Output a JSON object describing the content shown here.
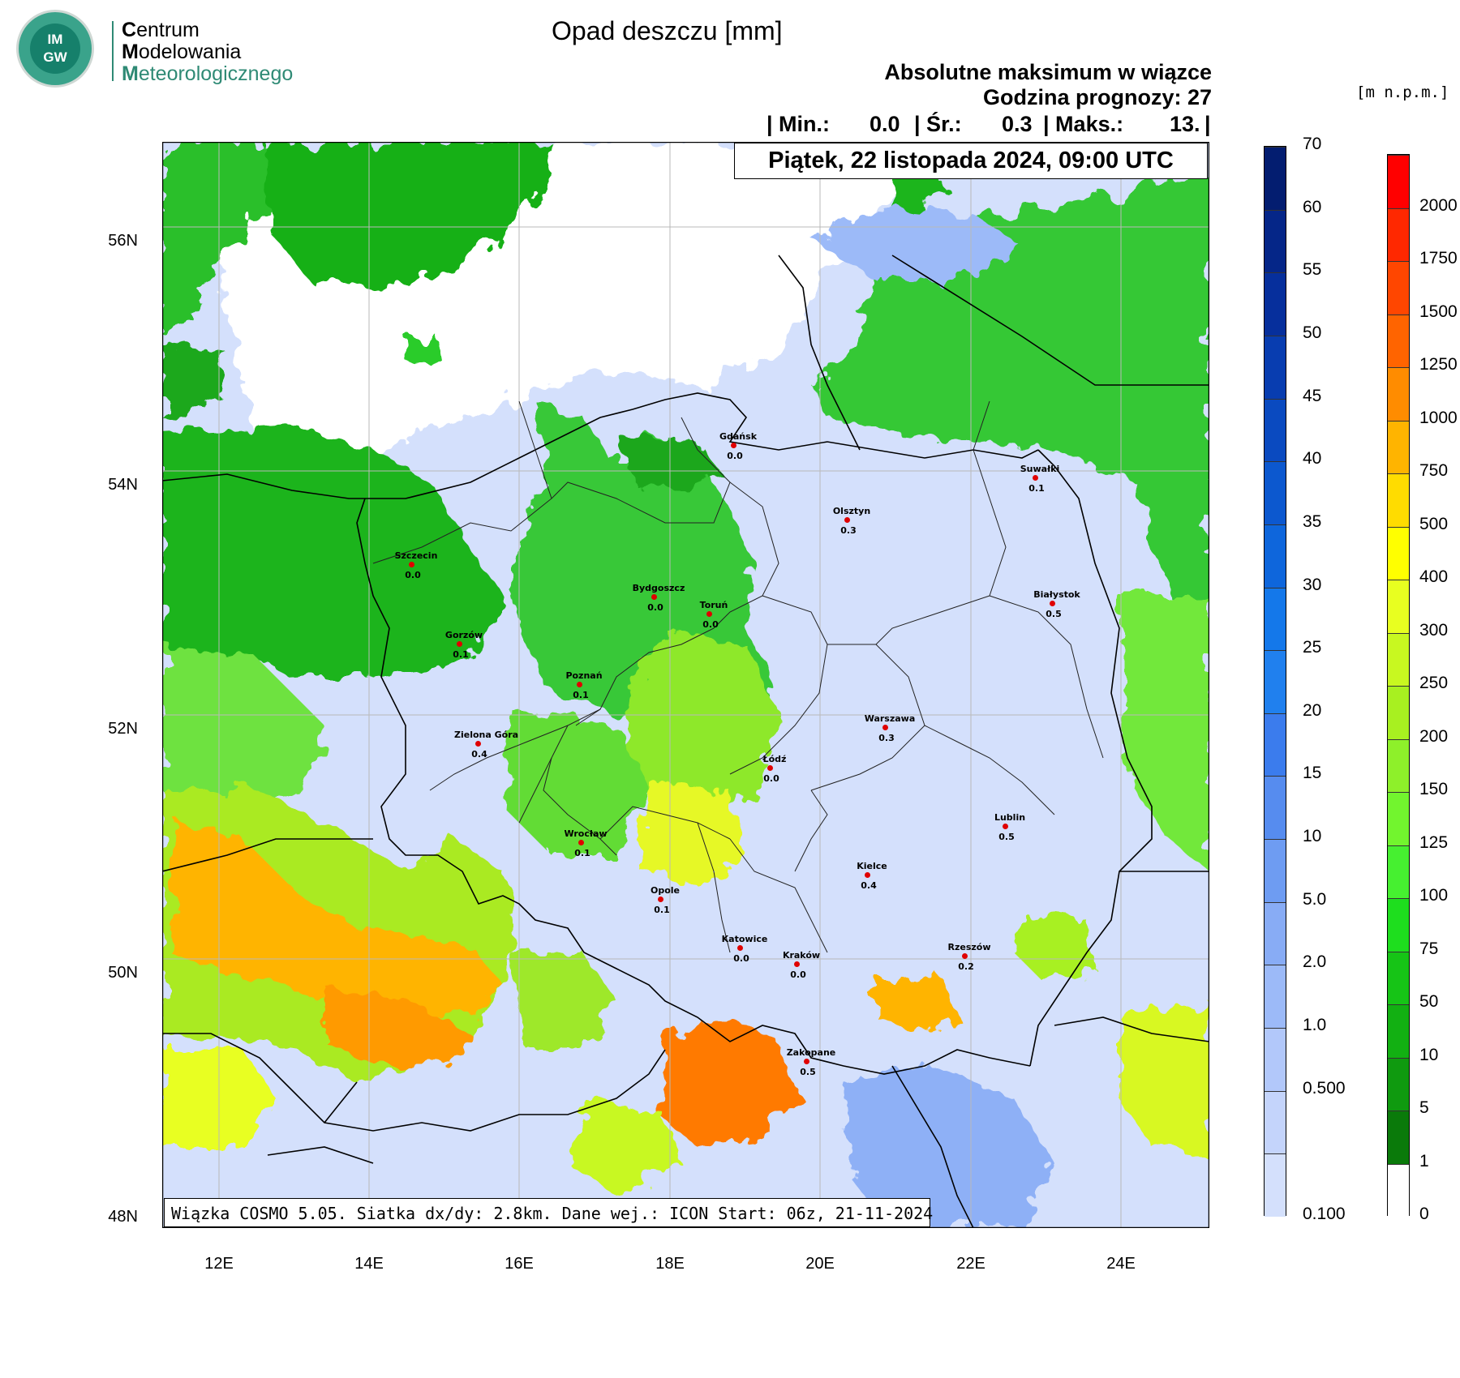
{
  "logo": {
    "badge": "IM\nGW",
    "line1_initial": "C",
    "line1_rest": "entrum",
    "line2_initial": "M",
    "line2_rest": "odelowania",
    "line3_initial": "M",
    "line3_rest": "eteorologicznego",
    "brand_color": "#2f8a75"
  },
  "title": "Opad deszczu [mm]",
  "subtitle1": "Absolutne maksimum w wiązce",
  "subtitle2": "Godzina prognozy: 27",
  "stats": {
    "min_label": "| Min.:",
    "min_value": "0.0",
    "avg_label": "| Śr.:",
    "avg_value": "0.3",
    "max_label": "| Maks.:",
    "max_value": "13.",
    "end": "|"
  },
  "date_label": "Piątek, 22 listopada 2024, 09:00 UTC",
  "run_label": "Wiązka COSMO 5.05. Siatka dx/dy: 2.8km. Dane wej.: ICON Start: 06z, 21-11-2024",
  "lat_labels": [
    "56N",
    "54N",
    "52N",
    "50N",
    "48N"
  ],
  "lon_labels": [
    "12E",
    "14E",
    "16E",
    "18E",
    "20E",
    "22E",
    "24E"
  ],
  "cities": [
    {
      "name": "Gdańsk",
      "value": "0.0"
    },
    {
      "name": "Suwałki",
      "value": "0.1"
    },
    {
      "name": "Olsztyn",
      "value": "0.3"
    },
    {
      "name": "Szczecin",
      "value": "0.0"
    },
    {
      "name": "Bydgoszcz",
      "value": "0.0"
    },
    {
      "name": "Toruń",
      "value": "0.0"
    },
    {
      "name": "Białystok",
      "value": "0.5"
    },
    {
      "name": "Gorzów",
      "value": "0.1"
    },
    {
      "name": "Poznań",
      "value": "0.1"
    },
    {
      "name": "Warszawa",
      "value": "0.3"
    },
    {
      "name": "Zielona Góra",
      "value": "0.4"
    },
    {
      "name": "Łódź",
      "value": "0.0"
    },
    {
      "name": "Lublin",
      "value": "0.5"
    },
    {
      "name": "Wrocław",
      "value": "0.1"
    },
    {
      "name": "Kielce",
      "value": "0.4"
    },
    {
      "name": "Opole",
      "value": "0.1"
    },
    {
      "name": "Katowice",
      "value": "0.0"
    },
    {
      "name": "Kraków",
      "value": "0.0"
    },
    {
      "name": "Rzeszów",
      "value": "0.2"
    },
    {
      "name": "Zakopane",
      "value": "0.5"
    }
  ],
  "rain_scale": {
    "labels": [
      "0.100",
      "0.500",
      "1.0",
      "2.0",
      "5.0",
      "10",
      "15",
      "20",
      "25",
      "30",
      "35",
      "40",
      "45",
      "50",
      "55",
      "60",
      "70"
    ],
    "colors": [
      "#d4e0fc",
      "#c4d4fb",
      "#b2c8fa",
      "#9cbaf8",
      "#88acf5",
      "#6e9cf2",
      "#568cef",
      "#3b7ced",
      "#2080ee",
      "#1478ea",
      "#0e66dc",
      "#0c58cf",
      "#0a4ac0",
      "#083db0",
      "#062f9c",
      "#052688",
      "#031d70"
    ]
  },
  "terrain_unit": "[m n.p.m.]",
  "terrain_scale": {
    "labels": [
      "0",
      "1",
      "5",
      "10",
      "50",
      "75",
      "100",
      "125",
      "150",
      "200",
      "250",
      "300",
      "400",
      "500",
      "750",
      "1000",
      "1250",
      "1500",
      "1750",
      "2000"
    ],
    "colors": [
      "#ffffff",
      "#0a7a0a",
      "#0f9a0f",
      "#12b012",
      "#16c416",
      "#1ede1e",
      "#46f030",
      "#72f52e",
      "#8ef02a",
      "#a8f020",
      "#c8f820",
      "#e8ff20",
      "#ffff00",
      "#ffdc00",
      "#ffb400",
      "#ff8c00",
      "#ff6400",
      "#ff4600",
      "#ff2800",
      "#ff0000"
    ]
  }
}
